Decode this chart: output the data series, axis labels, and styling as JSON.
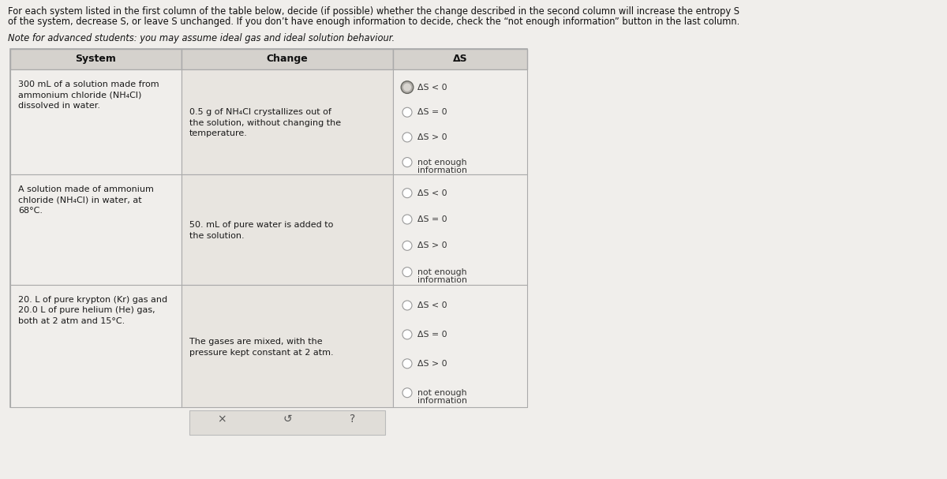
{
  "title_line1": "For each system listed in the first column of the table below, decide (if possible) whether the change described in the second column will increase the entropy S",
  "title_line2": "of the system, decrease S, or leave S unchanged. If you don’t have enough information to decide, check the “not enough information” button in the last column.",
  "note_text": "Note for advanced students: you may assume ideal gas and ideal solution behaviour.",
  "col_headers": [
    "System",
    "Change",
    "ΔS"
  ],
  "rows": [
    {
      "system": [
        "300 mL of a solution made from",
        "ammonium chloride (NH₄Cl)",
        "dissolved in water."
      ],
      "system_bold": [
        false,
        false,
        false
      ],
      "change": [
        "0.5 g of NH₄Cl crystallizes out of",
        "the solution, without changing the",
        "temperature."
      ],
      "options": [
        "ΔS < 0",
        "ΔS = 0",
        "ΔS > 0",
        "not enough\ninformation"
      ],
      "selected": 0
    },
    {
      "system": [
        "A solution made of ammonium",
        "chloride (NH₄Cl) in water, at",
        "68°C."
      ],
      "system_bold": [
        false,
        false,
        false
      ],
      "change": [
        "50. mL of pure water is added to",
        "the solution."
      ],
      "options": [
        "ΔS < 0",
        "ΔS = 0",
        "ΔS > 0",
        "not enough\ninformation"
      ],
      "selected": -1
    },
    {
      "system": [
        "20. L of pure krypton (Kr) gas and",
        "20.0 L of pure helium (He) gas,",
        "both at 2 atm and 15°C."
      ],
      "system_bold": [
        false,
        false,
        false
      ],
      "change": [
        "The gases are mixed, with the",
        "pressure kept constant at 2 atm."
      ],
      "options": [
        "ΔS < 0",
        "ΔS = 0",
        "ΔS > 0",
        "not enough\ninformation"
      ],
      "selected": -1
    }
  ],
  "footer_symbols": [
    "×",
    "↺",
    "?"
  ],
  "bg_color": "#f0eeeb",
  "table_border": "#aaaaaa",
  "header_bg": "#d5d2cd",
  "row_system_bg": "#f0eeeb",
  "row_change_bg": "#e8e5e0",
  "row_delta_bg": "#f0eeeb",
  "footer_bg": "#e0ddd8",
  "text_color": "#1a1a1a",
  "radio_selected_fill": "#888880",
  "radio_unselected_fill": "#ffffff",
  "radio_border": "#888888"
}
